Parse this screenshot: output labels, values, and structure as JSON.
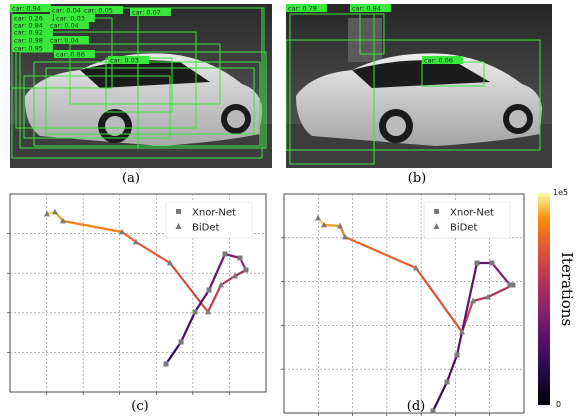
{
  "figure": {
    "captions": [
      "(a)",
      "(b)",
      "(c)",
      "(d)"
    ],
    "colorbar": {
      "title": "Iterations",
      "tick_top": "1e5",
      "tick_bottom": "0"
    },
    "legend": [
      "Xnor-Net",
      "BiDet"
    ]
  },
  "panel_a": {
    "detections": [
      {
        "label": "car: 0.94"
      },
      {
        "label": "car: 0.04"
      },
      {
        "label": "car: 0.05"
      },
      {
        "label": "car: 0.07"
      },
      {
        "label": "car: 0.26"
      },
      {
        "label": "car: 0.03"
      },
      {
        "label": "car: 0.84"
      },
      {
        "label": "car: 0.04"
      },
      {
        "label": "car: 0.92"
      },
      {
        "label": "car: 0.98"
      },
      {
        "label": "car: 0.04"
      },
      {
        "label": "car: 0.86"
      },
      {
        "label": "car: 0.95"
      },
      {
        "label": "car: 0.03"
      }
    ]
  },
  "panel_b": {
    "detections": [
      {
        "label": "car: 0.79"
      },
      {
        "label": "car: 0.94"
      },
      {
        "label": "car: 0.06"
      }
    ]
  },
  "colors": {
    "box_green": "#39e83b",
    "marker_gray": "#7a7a7a",
    "grid": "#8a8a8a"
  },
  "chart_data": [
    {
      "type": "line",
      "panel": "c",
      "title": "",
      "xlabel": "",
      "ylabel": "",
      "grid": true,
      "legend_position": "top-right",
      "series": [
        {
          "name": "Xnor-Net",
          "marker": "square",
          "x": [
            166,
            181,
            195,
            209,
            225,
            240,
            246
          ],
          "y": [
            364,
            342,
            312,
            290,
            254,
            258,
            270
          ]
        },
        {
          "name": "BiDet",
          "marker": "triangle",
          "x": [
            47,
            55,
            63,
            122,
            136,
            170,
            208,
            221,
            235
          ],
          "y": [
            214,
            212,
            221,
            232,
            242,
            263,
            312,
            285,
            276
          ]
        }
      ],
      "colorbar": {
        "range": [
          0,
          100000
        ],
        "label": "Iterations"
      }
    },
    {
      "type": "line",
      "panel": "d",
      "title": "",
      "xlabel": "",
      "ylabel": "",
      "grid": true,
      "legend_position": "top-right",
      "series": [
        {
          "name": "Xnor-Net",
          "marker": "square",
          "x": [
            433,
            447,
            457,
            477,
            492,
            510,
            513
          ],
          "y": [
            411,
            382,
            355,
            263,
            263,
            285,
            285
          ]
        },
        {
          "name": "BiDet",
          "marker": "triangle",
          "x": [
            318,
            324,
            340,
            345,
            416,
            462,
            473,
            488
          ],
          "y": [
            218,
            225,
            226,
            237,
            268,
            332,
            301,
            297
          ]
        }
      ],
      "colorbar": {
        "range": [
          0,
          100000
        ],
        "label": "Iterations"
      }
    }
  ]
}
